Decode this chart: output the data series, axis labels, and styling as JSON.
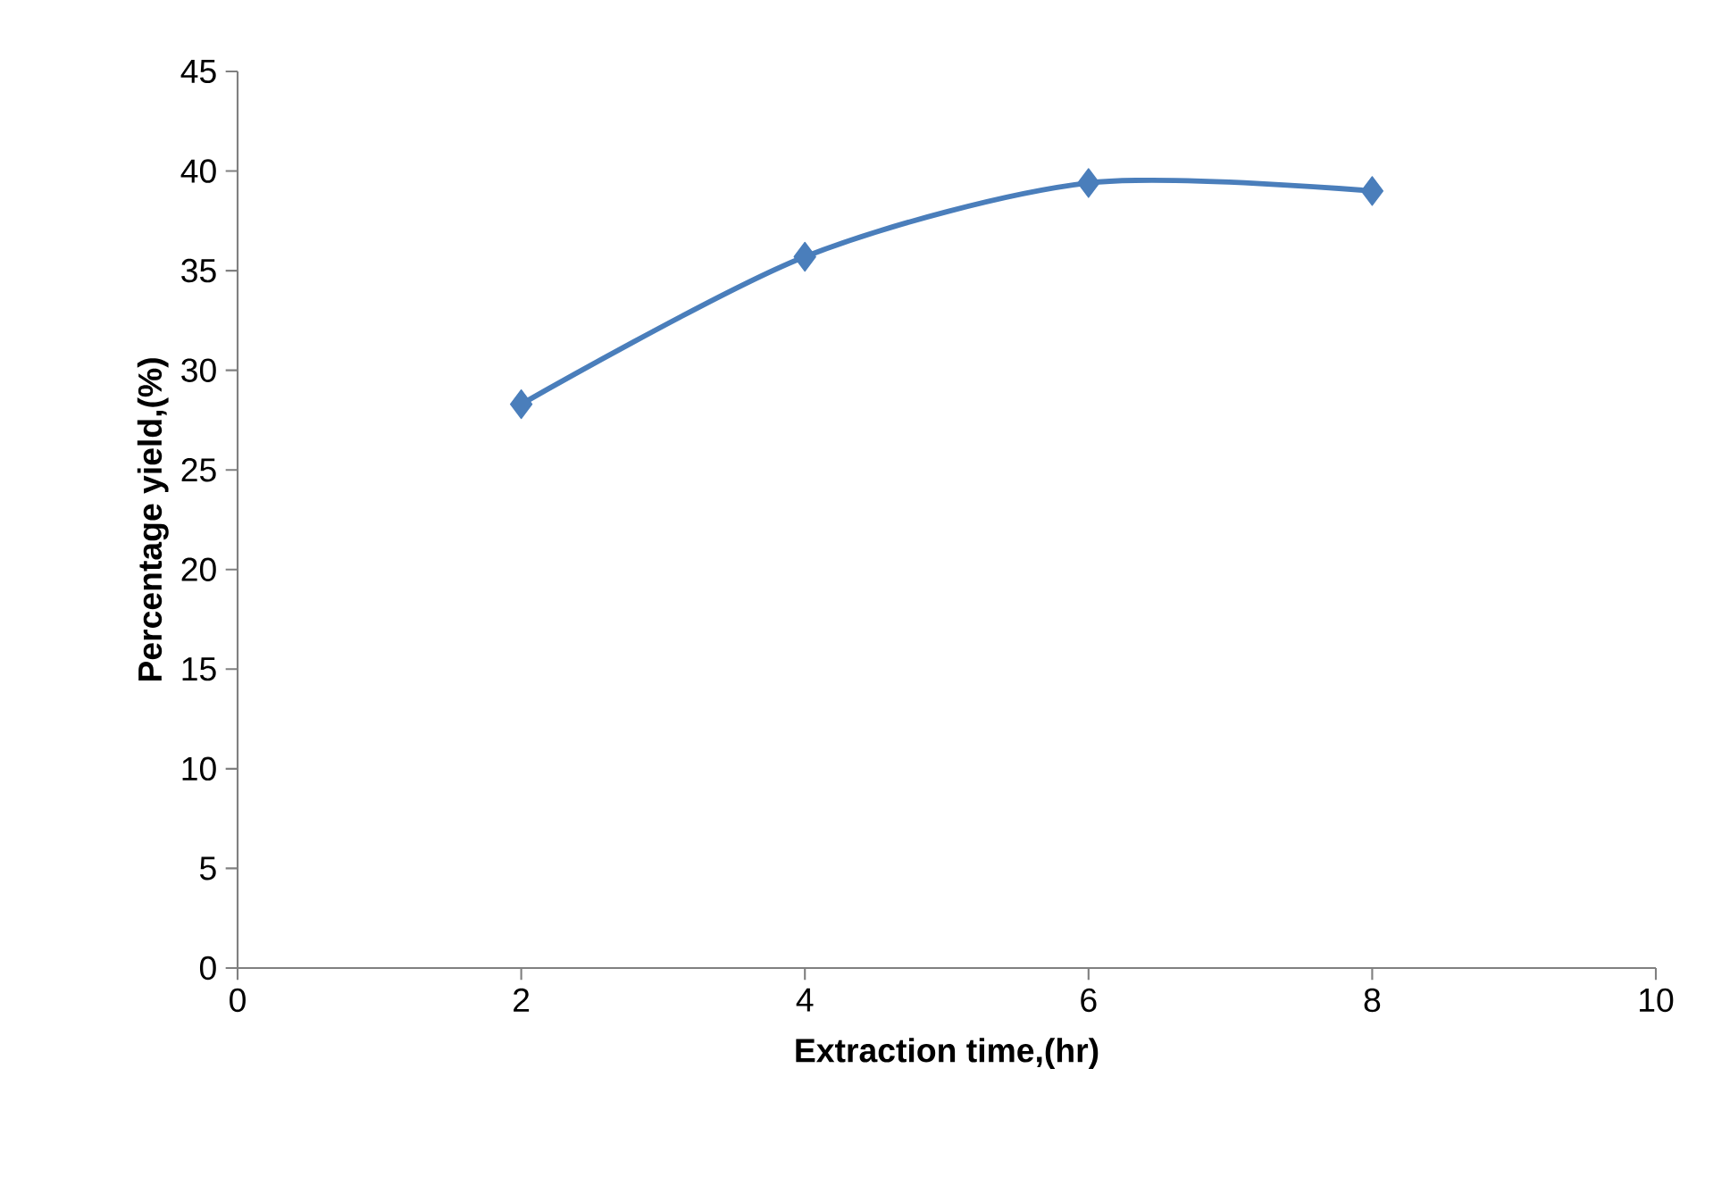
{
  "chart_data": {
    "type": "line",
    "xlabel": "Extraction time,(hr)",
    "ylabel": "Percentage yield,(%)",
    "x": [
      2,
      4,
      6,
      8
    ],
    "series": [
      {
        "color": "#4a7ebb",
        "values": [
          28.3,
          35.7,
          39.4,
          39.0
        ]
      }
    ],
    "xlim": [
      0,
      10
    ],
    "xticks": [
      0,
      2,
      4,
      6,
      8,
      10
    ],
    "ylim": [
      0,
      45
    ],
    "yticks": [
      0,
      5,
      10,
      15,
      20,
      25,
      30,
      35,
      40,
      45
    ],
    "marker": "diamond",
    "line_style": "solid"
  }
}
